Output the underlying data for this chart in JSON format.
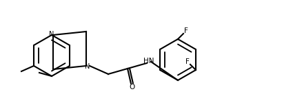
{
  "background_color": "#ffffff",
  "line_color": "#000000",
  "line_width": 1.5,
  "bond_color": "#000000",
  "label_F": "F",
  "label_N": "N",
  "label_HN": "HN",
  "label_O": "O",
  "figsize": [
    4.25,
    1.56
  ],
  "dpi": 100
}
